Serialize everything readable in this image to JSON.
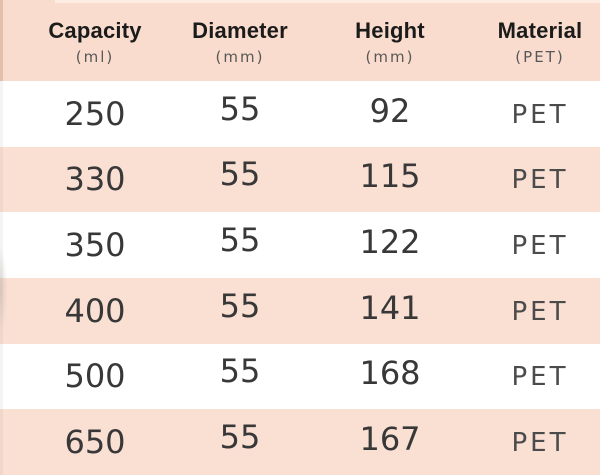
{
  "chart_data": {
    "type": "table",
    "columns": [
      {
        "label": "Capacity",
        "unit": "(ml)"
      },
      {
        "label": "Diameter",
        "unit": "(mm)"
      },
      {
        "label": "Height",
        "unit": "(mm)"
      },
      {
        "label": "Material",
        "unit": "(PET)"
      }
    ],
    "rows": [
      {
        "capacity": "250",
        "diameter": "55",
        "height": "92",
        "material": "PET"
      },
      {
        "capacity": "330",
        "diameter": "55",
        "height": "115",
        "material": "PET"
      },
      {
        "capacity": "350",
        "diameter": "55",
        "height": "122",
        "material": "PET"
      },
      {
        "capacity": "400",
        "diameter": "55",
        "height": "141",
        "material": "PET"
      },
      {
        "capacity": "500",
        "diameter": "55",
        "height": "168",
        "material": "PET"
      },
      {
        "capacity": "650",
        "diameter": "55",
        "height": "167",
        "material": "PET"
      }
    ]
  },
  "colors": {
    "header_bg": "#f9dccd",
    "row_bg": "#ffffff",
    "row_alt_bg": "#fadfd3",
    "header_text": "#1b1b1b",
    "unit_text": "#585858",
    "value_text": "#383838",
    "material_text": "#4b4b4b"
  }
}
